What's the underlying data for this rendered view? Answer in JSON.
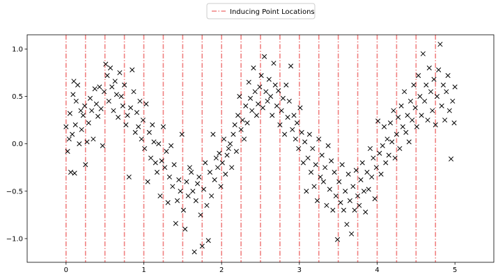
{
  "chart_data": {
    "type": "scatter",
    "title": "",
    "xlabel": "",
    "ylabel": "",
    "xlim": [
      -0.5,
      5.5
    ],
    "ylim": [
      -1.25,
      1.15
    ],
    "x_ticks": [
      "0",
      "1",
      "2",
      "3",
      "4",
      "5"
    ],
    "y_ticks": [
      "1.0",
      "0.5",
      "0.0",
      "−0.5",
      "−1.0"
    ],
    "grid": false,
    "legend_position": "top-center",
    "marker": "x",
    "colors": {
      "points": "#000000",
      "inducing_lines": "#f08080",
      "axes": "#000000",
      "background": "#ffffff"
    },
    "legend": [
      {
        "label": "Inducing Point Locations",
        "style": "dash-dot",
        "color": "#f08080"
      }
    ],
    "inducing_points": [
      0,
      0.25,
      0.5,
      0.75,
      1.0,
      1.25,
      1.5,
      1.75,
      2.0,
      2.25,
      2.5,
      2.75,
      3.0,
      3.25,
      3.5,
      3.75,
      4.0,
      4.25,
      4.5,
      4.75
    ],
    "series": [
      {
        "points": [
          [
            0.0,
            0.18
          ],
          [
            0.02,
            -0.08
          ],
          [
            0.04,
            0.05
          ],
          [
            0.05,
            0.32
          ],
          [
            0.06,
            -0.3
          ],
          [
            0.08,
            0.1
          ],
          [
            0.09,
            0.52
          ],
          [
            0.1,
            0.66
          ],
          [
            0.11,
            -0.31
          ],
          [
            0.12,
            0.2
          ],
          [
            0.13,
            0.45
          ],
          [
            0.15,
            0.62
          ],
          [
            0.17,
            0.0
          ],
          [
            0.19,
            0.35
          ],
          [
            0.2,
            0.15
          ],
          [
            0.22,
            0.3
          ],
          [
            0.24,
            0.4
          ],
          [
            0.25,
            -0.22
          ],
          [
            0.27,
            0.02
          ],
          [
            0.29,
            0.22
          ],
          [
            0.31,
            0.48
          ],
          [
            0.33,
            0.35
          ],
          [
            0.35,
            0.05
          ],
          [
            0.37,
            0.58
          ],
          [
            0.39,
            0.42
          ],
          [
            0.41,
            0.29
          ],
          [
            0.43,
            0.6
          ],
          [
            0.45,
            0.37
          ],
          [
            0.47,
            -0.02
          ],
          [
            0.49,
            0.55
          ],
          [
            0.51,
            0.84
          ],
          [
            0.53,
            0.72
          ],
          [
            0.55,
            0.45
          ],
          [
            0.57,
            0.8
          ],
          [
            0.59,
            0.6
          ],
          [
            0.61,
            0.35
          ],
          [
            0.63,
            0.66
          ],
          [
            0.65,
            0.52
          ],
          [
            0.67,
            0.28
          ],
          [
            0.69,
            0.75
          ],
          [
            0.71,
            0.5
          ],
          [
            0.73,
            0.4
          ],
          [
            0.75,
            0.62
          ],
          [
            0.77,
            0.2
          ],
          [
            0.79,
            0.3
          ],
          [
            0.81,
            -0.35
          ],
          [
            0.83,
            0.38
          ],
          [
            0.85,
            0.78
          ],
          [
            0.87,
            0.55
          ],
          [
            0.89,
            0.12
          ],
          [
            0.91,
            0.33
          ],
          [
            0.93,
            0.18
          ],
          [
            0.95,
            0.45
          ],
          [
            0.97,
            0.05
          ],
          [
            0.99,
            0.25
          ],
          [
            1.01,
            -0.05
          ],
          [
            1.03,
            0.42
          ],
          [
            1.05,
            -0.4
          ],
          [
            1.07,
            0.12
          ],
          [
            1.09,
            -0.15
          ],
          [
            1.11,
            0.2
          ],
          [
            1.13,
            0.02
          ],
          [
            1.15,
            -0.2
          ],
          [
            1.17,
            -0.3
          ],
          [
            1.19,
            0.0
          ],
          [
            1.21,
            -0.55
          ],
          [
            1.23,
            -0.18
          ],
          [
            1.25,
            0.18
          ],
          [
            1.27,
            -0.25
          ],
          [
            1.29,
            -0.08
          ],
          [
            1.31,
            -0.62
          ],
          [
            1.33,
            -0.35
          ],
          [
            1.35,
            -0.02
          ],
          [
            1.37,
            -0.45
          ],
          [
            1.39,
            -0.22
          ],
          [
            1.41,
            -0.84
          ],
          [
            1.43,
            -0.6
          ],
          [
            1.45,
            -0.38
          ],
          [
            1.47,
            -0.5
          ],
          [
            1.49,
            0.1
          ],
          [
            1.51,
            -0.7
          ],
          [
            1.53,
            -0.9
          ],
          [
            1.55,
            -0.4
          ],
          [
            1.57,
            -0.55
          ],
          [
            1.59,
            -0.25
          ],
          [
            1.61,
            -0.3
          ],
          [
            1.63,
            -0.5
          ],
          [
            1.65,
            -1.14
          ],
          [
            1.67,
            -0.6
          ],
          [
            1.69,
            -0.42
          ],
          [
            1.71,
            -0.35
          ],
          [
            1.73,
            -0.75
          ],
          [
            1.75,
            -1.08
          ],
          [
            1.77,
            -0.48
          ],
          [
            1.79,
            -0.2
          ],
          [
            1.81,
            -0.65
          ],
          [
            1.83,
            -1.02
          ],
          [
            1.85,
            -0.3
          ],
          [
            1.87,
            -0.55
          ],
          [
            1.89,
            0.1
          ],
          [
            1.91,
            -0.38
          ],
          [
            1.93,
            -0.15
          ],
          [
            1.95,
            -0.25
          ],
          [
            1.97,
            -0.1
          ],
          [
            1.99,
            -0.45
          ],
          [
            2.01,
            -0.2
          ],
          [
            2.03,
            0.05
          ],
          [
            2.05,
            -0.32
          ],
          [
            2.07,
            -0.12
          ],
          [
            2.09,
            -0.05
          ],
          [
            2.11,
            0.0
          ],
          [
            2.13,
            -0.25
          ],
          [
            2.15,
            0.1
          ],
          [
            2.17,
            0.2
          ],
          [
            2.19,
            -0.08
          ],
          [
            2.21,
            0.3
          ],
          [
            2.23,
            0.5
          ],
          [
            2.25,
            0.15
          ],
          [
            2.27,
            0.25
          ],
          [
            2.29,
            0.05
          ],
          [
            2.31,
            0.4
          ],
          [
            2.33,
            0.22
          ],
          [
            2.35,
            0.65
          ],
          [
            2.37,
            0.48
          ],
          [
            2.39,
            0.35
          ],
          [
            2.41,
            0.8
          ],
          [
            2.43,
            0.55
          ],
          [
            2.45,
            0.3
          ],
          [
            2.47,
            0.42
          ],
          [
            2.49,
            0.6
          ],
          [
            2.51,
            0.72
          ],
          [
            2.53,
            0.38
          ],
          [
            2.55,
            0.92
          ],
          [
            2.57,
            0.55
          ],
          [
            2.59,
            0.45
          ],
          [
            2.61,
            0.68
          ],
          [
            2.63,
            0.5
          ],
          [
            2.65,
            0.3
          ],
          [
            2.67,
            0.85
          ],
          [
            2.69,
            0.62
          ],
          [
            2.71,
            0.4
          ],
          [
            2.73,
            0.56
          ],
          [
            2.75,
            0.2
          ],
          [
            2.77,
            0.35
          ],
          [
            2.79,
            0.48
          ],
          [
            2.81,
            0.1
          ],
          [
            2.83,
            0.62
          ],
          [
            2.85,
            0.28
          ],
          [
            2.87,
            0.45
          ],
          [
            2.89,
            0.82
          ],
          [
            2.91,
            0.15
          ],
          [
            2.93,
            0.3
          ],
          [
            2.95,
            0.05
          ],
          [
            2.97,
            0.22
          ],
          [
            2.99,
            -0.05
          ],
          [
            3.01,
            0.38
          ],
          [
            3.03,
            0.12
          ],
          [
            3.05,
            -0.2
          ],
          [
            3.07,
            0.02
          ],
          [
            3.09,
            -0.5
          ],
          [
            3.11,
            -0.15
          ],
          [
            3.13,
            0.1
          ],
          [
            3.15,
            -0.3
          ],
          [
            3.17,
            -0.05
          ],
          [
            3.19,
            -0.45
          ],
          [
            3.21,
            -0.22
          ],
          [
            3.23,
            -0.6
          ],
          [
            3.25,
            0.05
          ],
          [
            3.27,
            -0.35
          ],
          [
            3.29,
            -0.12
          ],
          [
            3.31,
            -0.4
          ],
          [
            3.33,
            -0.25
          ],
          [
            3.35,
            -0.65
          ],
          [
            3.37,
            -0.02
          ],
          [
            3.39,
            -0.48
          ],
          [
            3.41,
            -0.18
          ],
          [
            3.43,
            -0.7
          ],
          [
            3.45,
            -0.3
          ],
          [
            3.47,
            -0.55
          ],
          [
            3.49,
            -1.01
          ],
          [
            3.51,
            -0.4
          ],
          [
            3.53,
            -0.62
          ],
          [
            3.55,
            -0.22
          ],
          [
            3.57,
            -0.7
          ],
          [
            3.59,
            -0.5
          ],
          [
            3.61,
            -0.85
          ],
          [
            3.63,
            -0.32
          ],
          [
            3.65,
            -0.6
          ],
          [
            3.67,
            -0.95
          ],
          [
            3.69,
            -0.45
          ],
          [
            3.71,
            -0.7
          ],
          [
            3.73,
            -0.28
          ],
          [
            3.75,
            -0.55
          ],
          [
            3.77,
            -0.65
          ],
          [
            3.79,
            -0.38
          ],
          [
            3.81,
            -0.2
          ],
          [
            3.83,
            -0.5
          ],
          [
            3.85,
            -0.72
          ],
          [
            3.87,
            -0.3
          ],
          [
            3.89,
            -0.48
          ],
          [
            3.91,
            -0.05
          ],
          [
            3.93,
            -0.35
          ],
          [
            3.95,
            -0.15
          ],
          [
            3.97,
            -0.58
          ],
          [
            3.99,
            -0.25
          ],
          [
            4.01,
            0.24
          ],
          [
            4.03,
            -0.1
          ],
          [
            4.05,
            -0.32
          ],
          [
            4.07,
            -0.02
          ],
          [
            4.09,
            0.18
          ],
          [
            4.11,
            -0.2
          ],
          [
            4.13,
            0.05
          ],
          [
            4.15,
            -0.12
          ],
          [
            4.17,
            0.22
          ],
          [
            4.19,
            0.02
          ],
          [
            4.21,
            0.35
          ],
          [
            4.23,
            -0.15
          ],
          [
            4.25,
            0.1
          ],
          [
            4.27,
            0.28
          ],
          [
            4.29,
            -0.05
          ],
          [
            4.31,
            0.4
          ],
          [
            4.33,
            0.18
          ],
          [
            4.35,
            0.55
          ],
          [
            4.37,
            0.12
          ],
          [
            4.39,
            0.3
          ],
          [
            4.41,
            0.02
          ],
          [
            4.43,
            0.45
          ],
          [
            4.45,
            0.25
          ],
          [
            4.47,
            0.62
          ],
          [
            4.49,
            0.38
          ],
          [
            4.51,
            0.18
          ],
          [
            4.53,
            0.72
          ],
          [
            4.55,
            0.5
          ],
          [
            4.57,
            0.3
          ],
          [
            4.59,
            0.95
          ],
          [
            4.61,
            0.45
          ],
          [
            4.63,
            0.62
          ],
          [
            4.65,
            0.25
          ],
          [
            4.67,
            0.8
          ],
          [
            4.69,
            0.55
          ],
          [
            4.71,
            0.35
          ],
          [
            4.73,
            0.68
          ],
          [
            4.75,
            0.2
          ],
          [
            4.77,
            0.5
          ],
          [
            4.79,
            0.78
          ],
          [
            4.81,
            1.05
          ],
          [
            4.83,
            0.4
          ],
          [
            4.85,
            0.62
          ],
          [
            4.87,
            0.25
          ],
          [
            4.89,
            0.55
          ],
          [
            4.91,
            0.72
          ],
          [
            4.93,
            0.35
          ],
          [
            4.95,
            -0.16
          ],
          [
            4.97,
            0.45
          ],
          [
            4.99,
            0.22
          ],
          [
            5.0,
            0.6
          ]
        ]
      }
    ]
  }
}
